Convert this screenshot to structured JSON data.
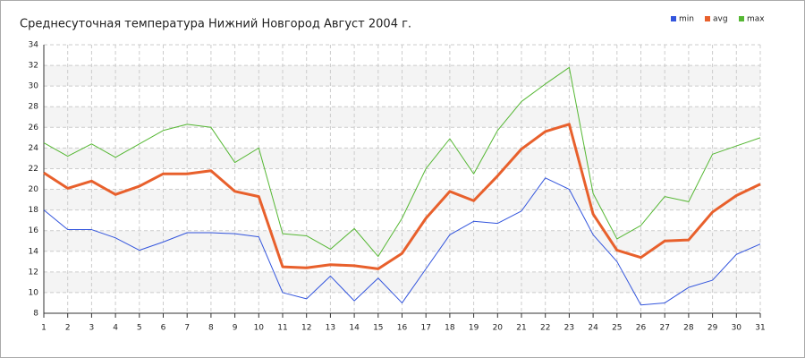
{
  "chart_data": {
    "type": "line",
    "title": "Среднесуточная температура Нижний Новгород  Август 2004 г.",
    "x": [
      1,
      2,
      3,
      4,
      5,
      6,
      7,
      8,
      9,
      10,
      11,
      12,
      13,
      14,
      15,
      16,
      17,
      18,
      19,
      20,
      21,
      22,
      23,
      24,
      25,
      26,
      27,
      28,
      29,
      30,
      31
    ],
    "xlim": [
      1,
      31
    ],
    "ylim": [
      8,
      34
    ],
    "yticks": [
      8,
      10,
      12,
      14,
      16,
      18,
      20,
      22,
      24,
      26,
      28,
      30,
      32,
      34
    ],
    "grid": true,
    "legend": "top-right",
    "series": [
      {
        "name": "min",
        "color": "#3355dd",
        "width": 1,
        "values": [
          18.0,
          16.1,
          16.1,
          15.3,
          14.1,
          14.9,
          15.8,
          15.8,
          15.7,
          15.4,
          10.0,
          9.4,
          11.6,
          9.2,
          11.4,
          9.0,
          12.3,
          15.6,
          16.9,
          16.7,
          17.9,
          21.1,
          20.0,
          15.6,
          13.0,
          8.8,
          9.0,
          10.5,
          11.2,
          13.7,
          14.7
        ]
      },
      {
        "name": "avg",
        "color": "#e8602c",
        "width": 3,
        "values": [
          21.6,
          20.1,
          20.8,
          19.5,
          20.3,
          21.5,
          21.5,
          21.8,
          19.8,
          19.3,
          12.5,
          12.4,
          12.7,
          12.6,
          12.3,
          13.8,
          17.2,
          19.8,
          18.9,
          21.3,
          23.9,
          25.6,
          26.3,
          17.6,
          14.1,
          13.4,
          15.0,
          15.1,
          17.8,
          19.4,
          20.5
        ]
      },
      {
        "name": "max",
        "color": "#55b733",
        "width": 1,
        "values": [
          24.5,
          23.2,
          24.4,
          23.1,
          24.4,
          25.7,
          26.3,
          26.0,
          22.6,
          24.0,
          15.7,
          15.5,
          14.2,
          16.2,
          13.5,
          17.2,
          22.0,
          24.9,
          21.5,
          25.7,
          28.5,
          30.2,
          31.8,
          19.6,
          15.2,
          16.5,
          19.3,
          18.8,
          23.4,
          24.2,
          25.0
        ]
      }
    ]
  }
}
